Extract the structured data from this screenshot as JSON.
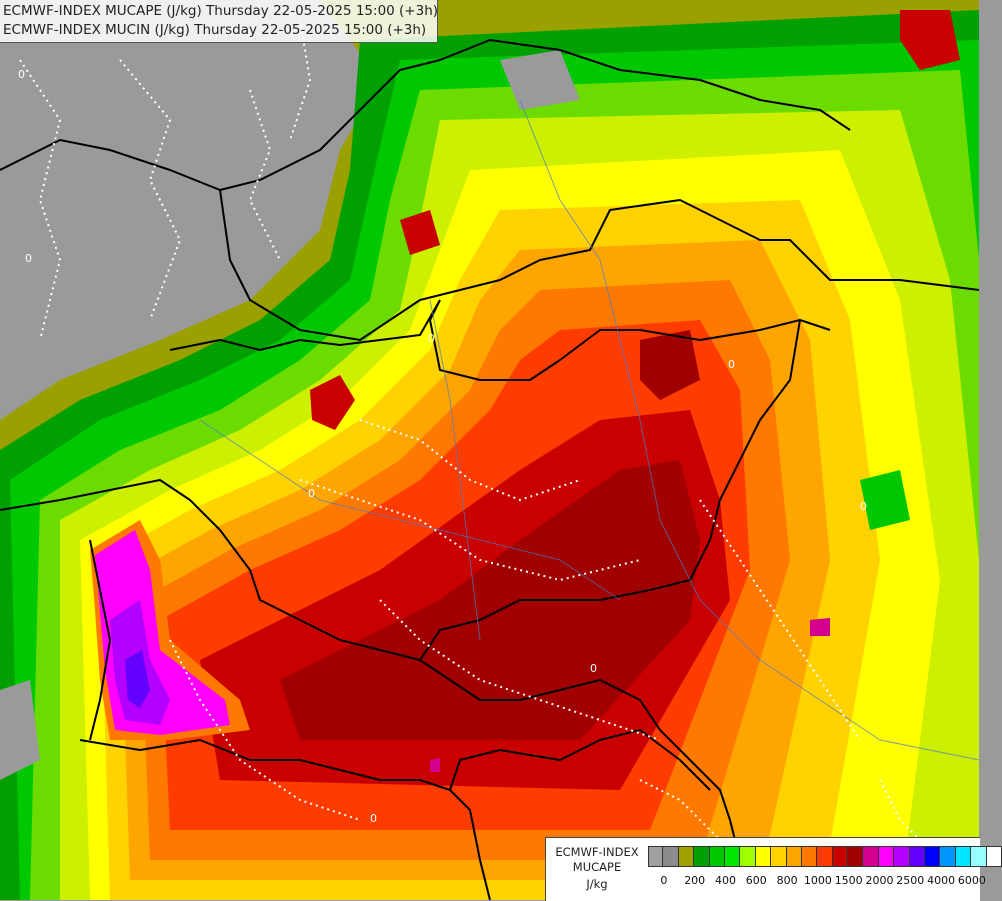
{
  "title": {
    "line1": "ECMWF-INDEX MUCAPE (J/kg) Thursday 22-05-2025 15:00 (+3h)",
    "line2": "ECMWF-INDEX MUCIN (J/kg) Thursday 22-05-2025 15:00 (+3h)"
  },
  "legend": {
    "line1": "ECMWF-INDEX",
    "line2": "MUCAPE",
    "line3": "J/kg",
    "colors": [
      "#a0a0a0",
      "#8c8c8c",
      "#a0a000",
      "#00a000",
      "#00c800",
      "#00e600",
      "#a0ff00",
      "#ffff00",
      "#ffd200",
      "#ffa500",
      "#ff7800",
      "#ff3c00",
      "#c80000",
      "#a00000",
      "#d2008c",
      "#ff00ff",
      "#b400ff",
      "#6400ff",
      "#0000ff",
      "#0096ff",
      "#00e6ff",
      "#96ffff",
      "#ffffff"
    ],
    "ticks": [
      "0",
      "200",
      "400",
      "600",
      "800",
      "1000",
      "1500",
      "2000",
      "2500",
      "4000",
      "6000"
    ]
  },
  "contour_label": "0"
}
